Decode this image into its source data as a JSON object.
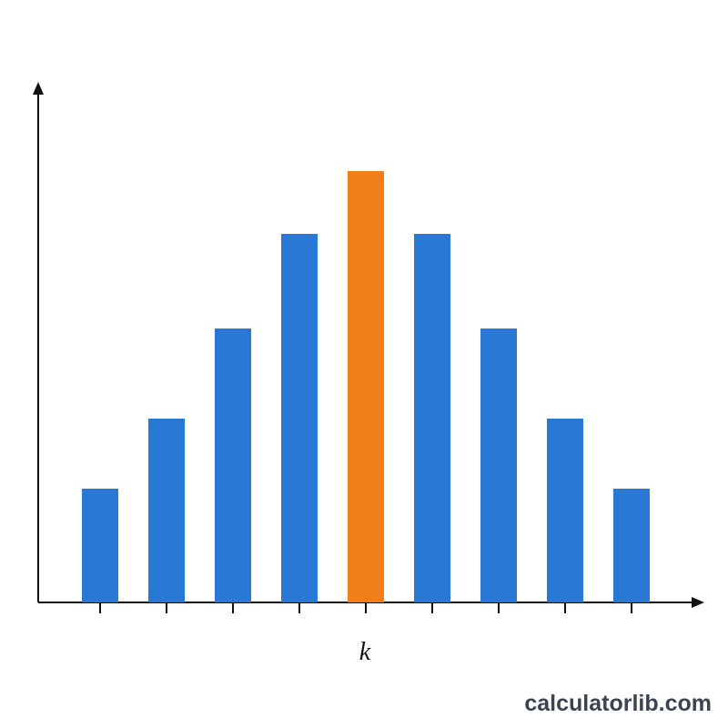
{
  "chart_data": {
    "type": "bar",
    "categories": [
      null,
      null,
      null,
      null,
      null,
      null,
      null,
      null,
      null
    ],
    "values": [
      125,
      202,
      301,
      405,
      474,
      405,
      301,
      202,
      125
    ],
    "colors": [
      "#2a78d6",
      "#2a78d6",
      "#2a78d6",
      "#2a78d6",
      "#f07f1a",
      "#2a78d6",
      "#2a78d6",
      "#2a78d6",
      "#2a78d6"
    ],
    "ylim": [
      0,
      570
    ],
    "xlabel": "k",
    "watermark": "calculatorlib.com"
  }
}
